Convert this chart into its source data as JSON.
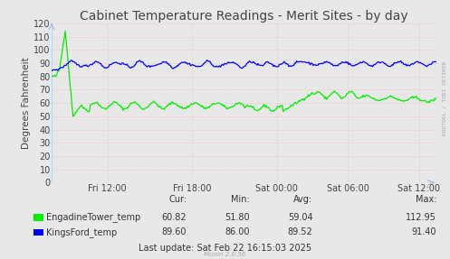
{
  "title": "Cabinet Temperature Readings - Merit Sites - by day",
  "ylabel": "Degrees Fahrenheit",
  "background_color": "#e8e8e8",
  "plot_bg_color": "#e8e8e8",
  "grid_color": "#ff9999",
  "ylim": [
    0,
    120
  ],
  "yticks": [
    0,
    10,
    20,
    30,
    40,
    50,
    60,
    70,
    80,
    90,
    100,
    110,
    120
  ],
  "xtick_labels": [
    "Fri 12:00",
    "Fri 18:00",
    "Sat 00:00",
    "Sat 06:00",
    "Sat 12:00"
  ],
  "green_color": "#00ee00",
  "blue_color": "#0000ff",
  "legend_entries": [
    {
      "label": "EngadineTower_temp",
      "cur": "60.82",
      "min": "51.80",
      "avg": "59.04",
      "max": "112.95"
    },
    {
      "label": "KingsFord_temp",
      "cur": "89.60",
      "min": "86.00",
      "avg": "89.52",
      "max": "91.40"
    }
  ],
  "last_update": "Last update: Sat Feb 22 16:15:03 2025",
  "munin_version": "Munin 2.0.56",
  "rrdtool_label": "RRDTOOL / TOBI OETIKER",
  "title_fontsize": 10,
  "axis_label_fontsize": 7.5,
  "tick_fontsize": 7,
  "legend_fontsize": 7
}
